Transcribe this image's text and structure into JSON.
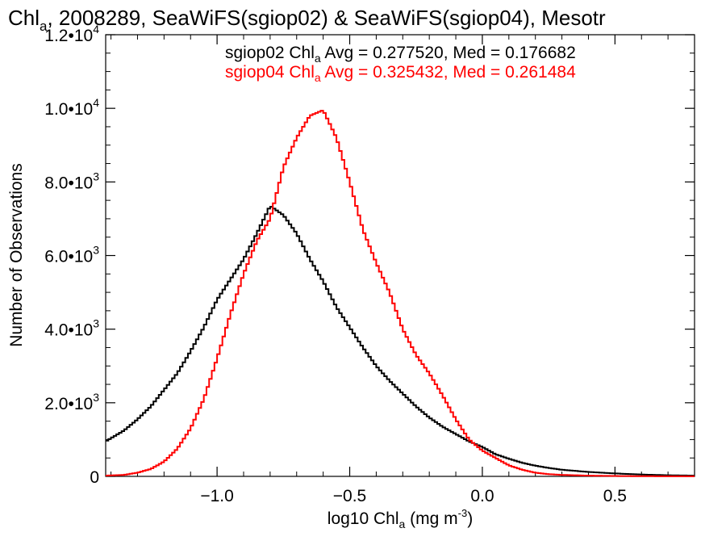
{
  "chart_data": {
    "type": "line",
    "style": "step-histogram",
    "title": {
      "prefix": "Chl",
      "sub": "a",
      "rest": ", 2008289, SeaWiFS(sgiop02) & SeaWiFS(sgiop04), Mesotr"
    },
    "xlabel": {
      "prefix": "log10 Chl",
      "sub": "a",
      "rest": " (mg m",
      "sup": "-3",
      "close": ")"
    },
    "ylabel": "Number of Observations",
    "xlim": [
      -1.42,
      0.8
    ],
    "ylim": [
      0,
      12000
    ],
    "x_ticks": [
      {
        "value": -1.0,
        "label": "−1.0"
      },
      {
        "value": -0.5,
        "label": "−0.5"
      },
      {
        "value": 0.0,
        "label": "0.0"
      },
      {
        "value": 0.5,
        "label": "0.5"
      }
    ],
    "y_ticks": [
      {
        "value": 0,
        "mant": "0",
        "exp": ""
      },
      {
        "value": 2000,
        "mant": "2.0•10",
        "exp": "3"
      },
      {
        "value": 4000,
        "mant": "4.0•10",
        "exp": "3"
      },
      {
        "value": 6000,
        "mant": "6.0•10",
        "exp": "3"
      },
      {
        "value": 8000,
        "mant": "8.0•10",
        "exp": "3"
      },
      {
        "value": 10000,
        "mant": "1.0•10",
        "exp": "4"
      },
      {
        "value": 12000,
        "mant": "1.2•10",
        "exp": "4"
      }
    ],
    "series": [
      {
        "name": "sgiop02",
        "color": "#000000",
        "legend": {
          "prefix": "sgiop02 Chl",
          "sub": "a",
          "rest": " Avg = 0.277520, Med = 0.176682"
        },
        "x": [
          -1.42,
          -1.35,
          -1.3,
          -1.25,
          -1.2,
          -1.15,
          -1.1,
          -1.05,
          -1.0,
          -0.95,
          -0.9,
          -0.85,
          -0.8,
          -0.75,
          -0.7,
          -0.65,
          -0.6,
          -0.55,
          -0.5,
          -0.45,
          -0.4,
          -0.35,
          -0.3,
          -0.25,
          -0.2,
          -0.15,
          -0.1,
          -0.05,
          0.0,
          0.05,
          0.1,
          0.15,
          0.2,
          0.25,
          0.3,
          0.4,
          0.5,
          0.6,
          0.7,
          0.8
        ],
        "y": [
          950,
          1250,
          1550,
          1900,
          2350,
          2800,
          3400,
          4050,
          4800,
          5350,
          5900,
          6600,
          7350,
          7100,
          6600,
          5900,
          5300,
          4600,
          4050,
          3500,
          3000,
          2600,
          2250,
          1900,
          1600,
          1350,
          1150,
          950,
          800,
          600,
          480,
          370,
          290,
          230,
          180,
          120,
          80,
          50,
          30,
          20
        ]
      },
      {
        "name": "sgiop04",
        "color": "#ff0000",
        "legend": {
          "prefix": "sgiop04 Chl",
          "sub": "a",
          "rest": " Avg = 0.325432, Med = 0.261484"
        },
        "x": [
          -1.42,
          -1.35,
          -1.3,
          -1.25,
          -1.2,
          -1.15,
          -1.1,
          -1.05,
          -1.0,
          -0.95,
          -0.9,
          -0.85,
          -0.8,
          -0.75,
          -0.7,
          -0.65,
          -0.6,
          -0.55,
          -0.5,
          -0.45,
          -0.4,
          -0.35,
          -0.3,
          -0.25,
          -0.2,
          -0.15,
          -0.1,
          -0.05,
          0.0,
          0.05,
          0.1,
          0.15,
          0.2,
          0.25,
          0.3,
          0.4,
          0.5,
          0.6,
          0.7,
          0.8
        ],
        "y": [
          20,
          40,
          100,
          200,
          400,
          750,
          1300,
          2100,
          3200,
          4400,
          5500,
          6400,
          7000,
          8400,
          9200,
          9800,
          9950,
          9200,
          8000,
          6700,
          5800,
          5000,
          4000,
          3300,
          2800,
          2200,
          1550,
          1000,
          700,
          500,
          300,
          180,
          100,
          60,
          40,
          20,
          10,
          5,
          3,
          2
        ]
      }
    ]
  }
}
